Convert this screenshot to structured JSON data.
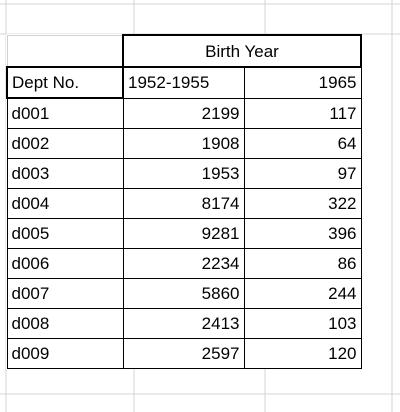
{
  "table": {
    "group_header": "Birth Year",
    "column_headers": [
      "Dept No.",
      "1952-1955",
      "1965"
    ],
    "rows": [
      [
        "d001",
        "2199",
        "117"
      ],
      [
        "d002",
        "1908",
        "64"
      ],
      [
        "d003",
        "1953",
        "97"
      ],
      [
        "d004",
        "8174",
        "322"
      ],
      [
        "d005",
        "9281",
        "396"
      ],
      [
        "d006",
        "2234",
        "86"
      ],
      [
        "d007",
        "5860",
        "244"
      ],
      [
        "d008",
        "2413",
        "103"
      ],
      [
        "d009",
        "2597",
        "120"
      ]
    ]
  }
}
